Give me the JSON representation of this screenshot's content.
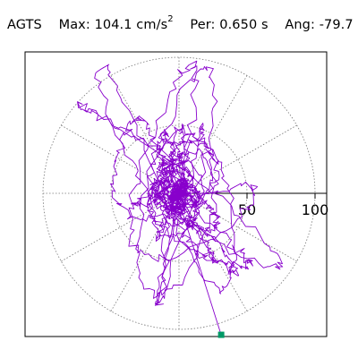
{
  "header": {
    "station": "AGTS",
    "max_label": "Max:",
    "max_value": "104.1 cm/s",
    "max_exponent": "2",
    "per_label": "Per:",
    "per_value": "0.650 s",
    "ang_label": "Ang:",
    "ang_value": "-79.7"
  },
  "chart_data": {
    "type": "polar-orbit",
    "title": "AGTS",
    "max_amplitude": 104.1,
    "max_units": "cm/s2",
    "period_s": 0.65,
    "angle_deg": -79.7,
    "radial_ticks": [
      50,
      100
    ],
    "radial_tick_labels": [
      "50",
      "100"
    ],
    "rings": [
      50,
      100
    ],
    "spoke_angles_deg": [
      0,
      30,
      60,
      90,
      120,
      150,
      180,
      210,
      240,
      270,
      300,
      330
    ],
    "rmax": 110,
    "grid": true,
    "orbit_color": "#8800cc",
    "marker_color": "#009966",
    "marker_point": [
      31,
      -104
    ],
    "trace_seed": 20240517
  }
}
